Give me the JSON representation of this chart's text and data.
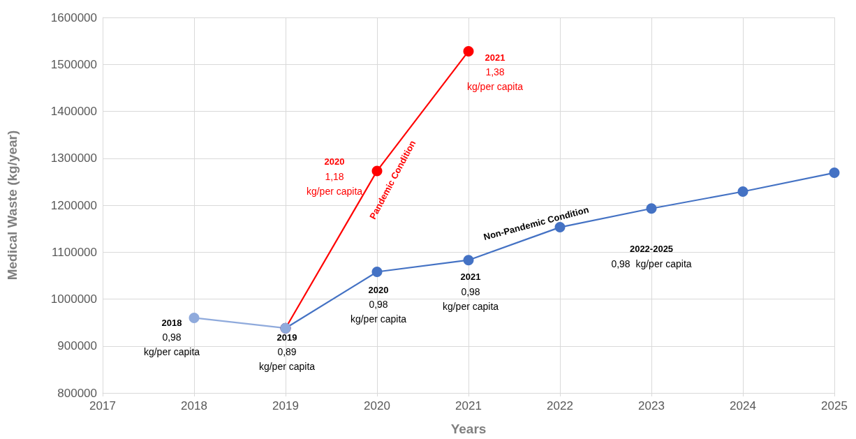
{
  "chart_data": {
    "type": "line",
    "xlabel": "Years",
    "ylabel": "Medical Waste (kg/year)",
    "xlim": [
      2017,
      2025
    ],
    "xticks": [
      2017,
      2018,
      2019,
      2020,
      2021,
      2022,
      2023,
      2024,
      2025
    ],
    "ylim": [
      800000,
      1600000
    ],
    "yticks": [
      800000,
      900000,
      1000000,
      1100000,
      1200000,
      1300000,
      1400000,
      1500000,
      1600000
    ],
    "grid": true,
    "marker": "circle",
    "line_style": "solid",
    "series": [
      {
        "color": "#ff0000",
        "x": [
          2019,
          2020,
          2021
        ],
        "values": [
          938000,
          1273000,
          1528000
        ]
      },
      {
        "color": "#4472c4",
        "x": [
          2019,
          2020,
          2021,
          2022,
          2023,
          2024,
          2025
        ],
        "values": [
          938000,
          1058000,
          1083000,
          1153000,
          1193000,
          1229000,
          1269000
        ]
      },
      {
        "color": "#8faadc",
        "x": [
          2018,
          2019
        ],
        "values": [
          960000,
          938000
        ]
      }
    ],
    "annotations": [
      {
        "text": "2018\n0,98\nkg/per capita",
        "x": 2018,
        "y": 960000
      },
      {
        "text": "2019\n0,89\nkg/per capita",
        "x": 2019,
        "y": 938000
      },
      {
        "text": "2020\n0,98\nkg/per capita",
        "x": 2020,
        "y": 1058000
      },
      {
        "text": "2021\n0,98\nkg/per capita",
        "x": 2021,
        "y": 1083000
      },
      "2022-2025\n0,98  kg/per capita",
      {
        "text": "2020\n1,18\nkg/per capita",
        "x": 2020,
        "y": 1273000
      },
      {
        "text": "2021\n1,38\nkg/per capita",
        "x": 2021,
        "y": 1528000
      },
      {
        "text": "Pandemic Condition",
        "x": 2020.2,
        "y": 1324000
      },
      {
        "text": "Non-Pandemic Condition",
        "x": 2021.74,
        "y": 1134800
      }
    ]
  }
}
